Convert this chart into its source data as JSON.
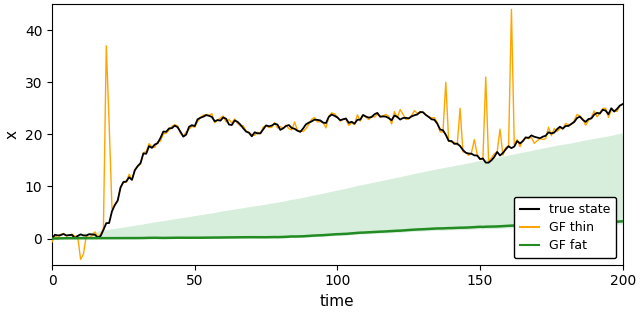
{
  "title": "",
  "xlabel": "time",
  "ylabel": "x",
  "xlim": [
    0,
    200
  ],
  "ylim": [
    -5,
    45
  ],
  "true_state_color": "black",
  "gf_thin_color": "orange",
  "gf_fat_color": "#228B22",
  "gf_fat_fill_color": "#d4edda",
  "legend_labels": [
    "true state",
    "GF thin",
    "GF fat"
  ],
  "n_steps": 200
}
